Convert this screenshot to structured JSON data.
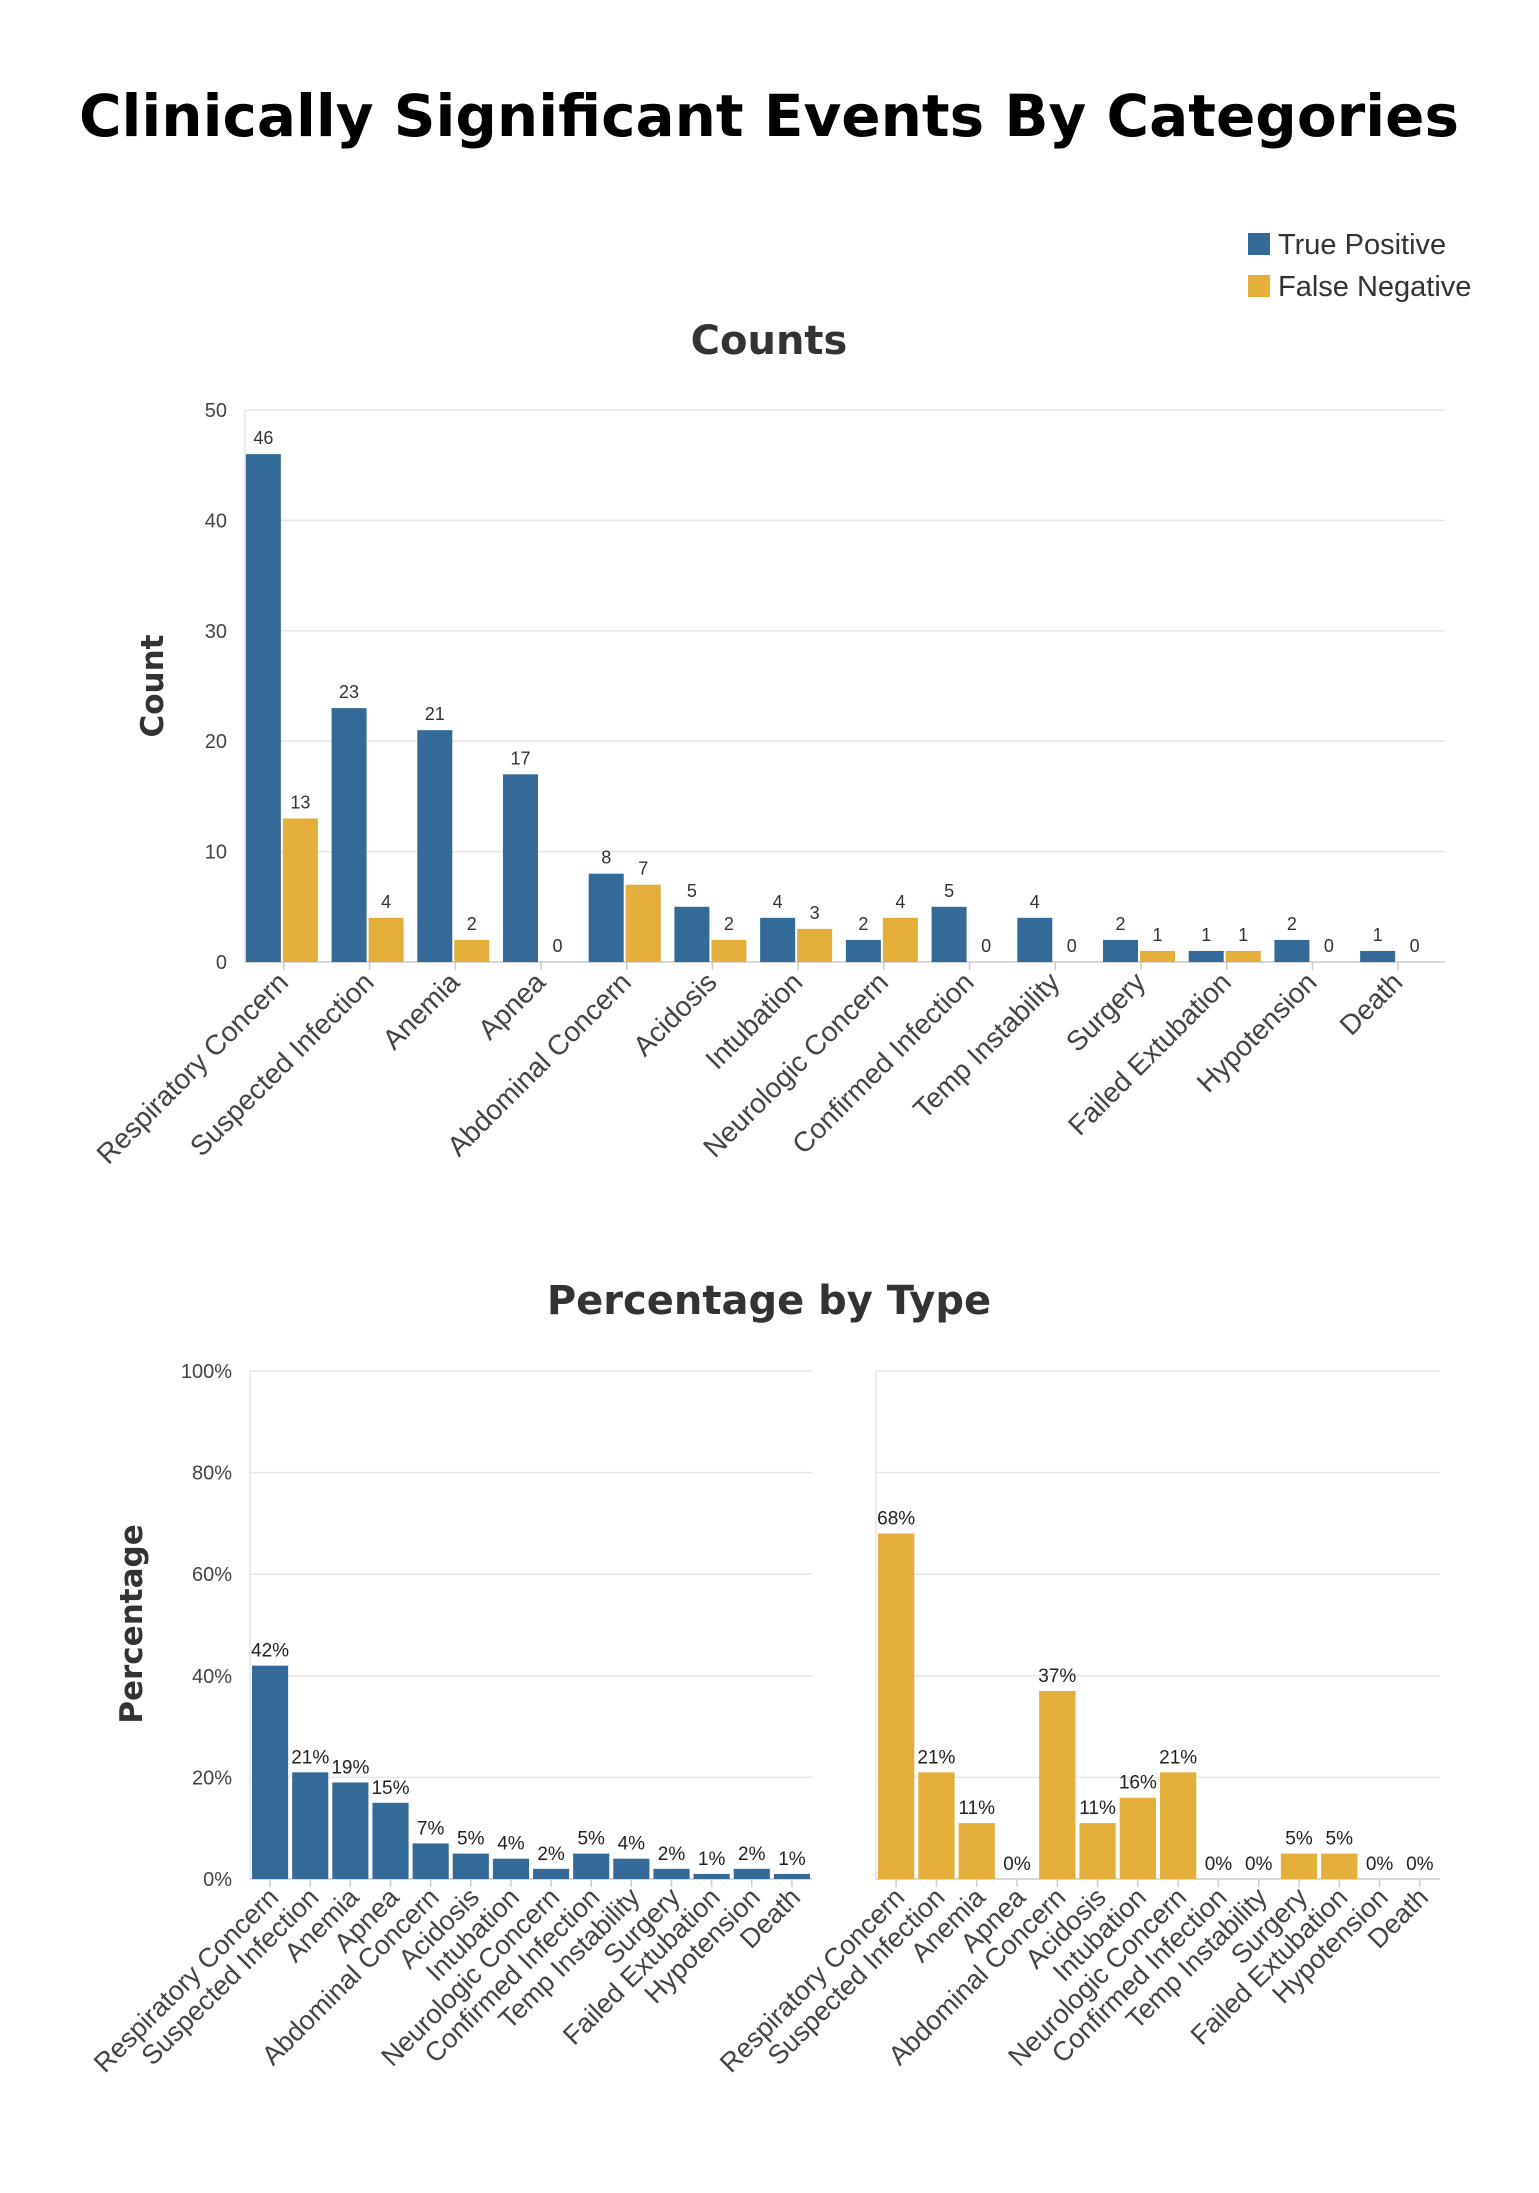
{
  "title": "Clinically Significant Events By Categories",
  "legend": {
    "position": "top-right",
    "items": [
      {
        "name": "True Positive",
        "color": "#336a98"
      },
      {
        "name": "False Negative",
        "color": "#e3ae3a"
      }
    ]
  },
  "chart_data": [
    {
      "type": "bar",
      "title": "Counts",
      "xlabel": "",
      "ylabel": "Count",
      "ylim": [
        0,
        50
      ],
      "yticks": [
        "0",
        "10",
        "20",
        "30",
        "40",
        "50"
      ],
      "grid": true,
      "categories": [
        "Respiratory Concern",
        "Suspected Infection",
        "Anemia",
        "Apnea",
        "Abdominal Concern",
        "Acidosis",
        "Intubation",
        "Neurologic Concern",
        "Confirmed Infection",
        "Temp Instability",
        "Surgery",
        "Failed Extubation",
        "Hypotension",
        "Death"
      ],
      "series": [
        {
          "name": "True Positive",
          "color": "#336a98",
          "values": [
            46,
            23,
            21,
            17,
            8,
            5,
            4,
            2,
            5,
            4,
            2,
            1,
            2,
            1
          ]
        },
        {
          "name": "False Negative",
          "color": "#e3ae3a",
          "values": [
            13,
            4,
            2,
            0,
            7,
            2,
            3,
            4,
            0,
            0,
            1,
            1,
            0,
            0
          ]
        }
      ]
    },
    {
      "type": "bar",
      "title": "Percentage by Type",
      "xlabel": "",
      "ylabel": "Percentage",
      "ylim": [
        0,
        100
      ],
      "yticks": [
        "0%",
        "20%",
        "40%",
        "60%",
        "80%",
        "100%"
      ],
      "grid": true,
      "categories": [
        "Respiratory Concern",
        "Suspected Infection",
        "Anemia",
        "Apnea",
        "Abdominal Concern",
        "Acidosis",
        "Intubation",
        "Neurologic Concern",
        "Confirmed Infection",
        "Temp Instability",
        "Surgery",
        "Failed Extubation",
        "Hypotension",
        "Death"
      ],
      "series": [
        {
          "name": "True Positive",
          "color": "#336a98",
          "values": [
            42,
            21,
            19,
            15,
            7,
            5,
            4,
            2,
            5,
            4,
            2,
            1,
            2,
            1
          ],
          "labels": [
            "42%",
            "21%",
            "19%",
            "15%",
            "7%",
            "5%",
            "4%",
            "2%",
            "5%",
            "4%",
            "2%",
            "1%",
            "2%",
            "1%"
          ]
        },
        {
          "name": "False Negative",
          "color": "#e3ae3a",
          "values": [
            68,
            21,
            11,
            0,
            37,
            11,
            16,
            21,
            0,
            0,
            5,
            5,
            0,
            0
          ],
          "labels": [
            "68%",
            "21%",
            "11%",
            "0%",
            "37%",
            "11%",
            "16%",
            "21%",
            "0%",
            "0%",
            "5%",
            "5%",
            "0%",
            "0%"
          ]
        }
      ]
    }
  ]
}
